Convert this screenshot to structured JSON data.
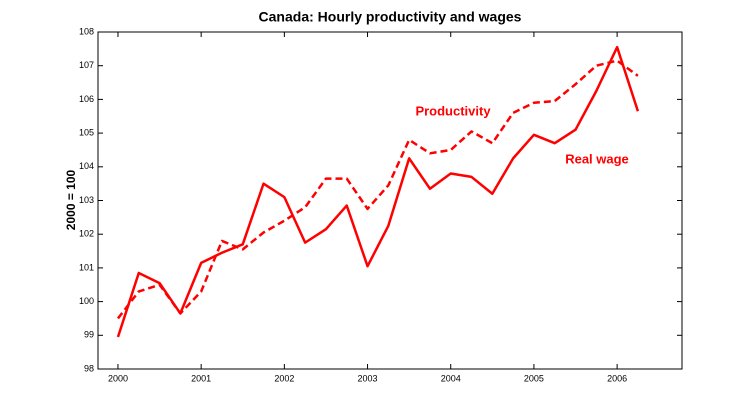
{
  "chart_data": {
    "type": "line",
    "title": "Canada: Hourly productivity and wages",
    "y_label": "2000 = 100",
    "x": [
      2000,
      2000.25,
      2000.5,
      2000.75,
      2001,
      2001.25,
      2001.5,
      2001.75,
      2002,
      2002.25,
      2002.5,
      2002.75,
      2003,
      2003.25,
      2003.5,
      2003.75,
      2004,
      2004.25,
      2004.5,
      2004.75,
      2005,
      2005.25,
      2005.5,
      2005.75,
      2006,
      2006.25
    ],
    "series": [
      {
        "name": "Productivity",
        "color": "#ff0000",
        "dashed": true,
        "values": [
          99.5,
          100.3,
          100.5,
          99.65,
          100.3,
          101.8,
          101.55,
          102.05,
          102.4,
          102.8,
          103.65,
          103.65,
          102.75,
          103.45,
          104.8,
          104.4,
          104.5,
          105.05,
          104.7,
          105.6,
          105.9,
          105.95,
          106.45,
          107.0,
          107.15,
          106.7
        ]
      },
      {
        "name": "Real wage",
        "color": "#ff0000",
        "dashed": false,
        "values": [
          98.95,
          100.85,
          100.55,
          99.65,
          101.15,
          101.45,
          101.7,
          103.5,
          103.1,
          101.75,
          102.15,
          102.85,
          101.05,
          102.25,
          104.25,
          103.35,
          103.8,
          103.7,
          103.2,
          104.25,
          104.95,
          104.7,
          105.1,
          106.25,
          107.55,
          105.65
        ]
      }
    ],
    "xlim": [
      1999.76,
      2006.78
    ],
    "xticks": [
      2000,
      2001,
      2002,
      2003,
      2004,
      2005,
      2006
    ],
    "ylim": [
      98,
      108
    ],
    "yticks": [
      98,
      99,
      100,
      101,
      102,
      103,
      104,
      105,
      106,
      107,
      108
    ]
  }
}
